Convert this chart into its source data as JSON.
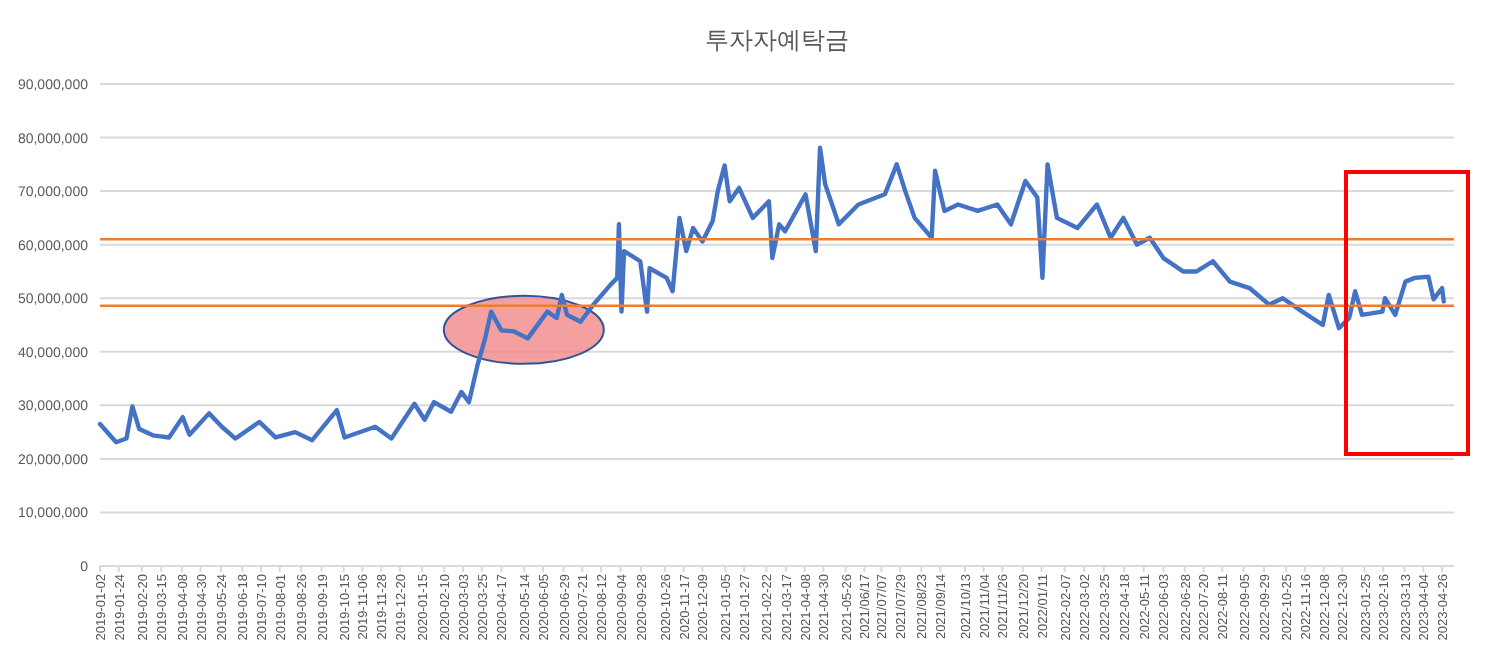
{
  "chart_data": {
    "type": "line",
    "title": "투자자예탁금",
    "x": [
      "2019-01-02",
      "2019-01-21",
      "2019-02-02",
      "2019-02-09",
      "2019-02-17",
      "2019-03-05",
      "2019-03-24",
      "2019-04-09",
      "2019-04-17",
      "2019-05-10",
      "2019-05-25",
      "2019-06-10",
      "2019-07-08",
      "2019-07-27",
      "2019-08-19",
      "2019-09-08",
      "2019-10-07",
      "2019-10-16",
      "2019-11-21",
      "2019-12-10",
      "2020-01-06",
      "2020-01-18",
      "2020-01-29",
      "2020-02-18",
      "2020-03-01",
      "2020-03-10",
      "2020-03-20",
      "2020-03-29",
      "2020-04-05",
      "2020-04-17",
      "2020-05-02",
      "2020-05-18",
      "2020-06-10",
      "2020-06-21",
      "2020-06-27",
      "2020-07-03",
      "2020-07-19",
      "2020-08-03",
      "2020-08-23",
      "2020-08-31",
      "2020-09-02",
      "2020-09-05",
      "2020-09-08",
      "2020-09-27",
      "2020-10-05",
      "2020-10-08",
      "2020-10-28",
      "2020-11-04",
      "2020-11-12",
      "2020-11-20",
      "2020-11-28",
      "2020-12-09",
      "2020-12-21",
      "2020-12-27",
      "2021-01-04",
      "2021-01-10",
      "2021-01-21",
      "2021-02-06",
      "2021-02-25",
      "2021-03-01",
      "2021-03-09",
      "2021-03-16",
      "2021-04-09",
      "2021-04-21",
      "2021-04-26",
      "2021-05-02",
      "2021-05-18",
      "2021-06-10",
      "2021-07-11",
      "2021-07-25",
      "2021-08-04",
      "2021-08-15",
      "2021-09-04",
      "2021-09-08",
      "2021-09-19",
      "2021-10-05",
      "2021-10-28",
      "2021-11-20",
      "2021-12-06",
      "2021-12-23",
      "2022-01-06",
      "2022-01-12",
      "2022-01-18",
      "2022-01-29",
      "2022-02-22",
      "2022-03-17",
      "2022-04-02",
      "2022-04-17",
      "2022-05-03",
      "2022-05-18",
      "2022-06-03",
      "2022-06-26",
      "2022-07-12",
      "2022-07-31",
      "2022-08-20",
      "2022-09-12",
      "2022-10-05",
      "2022-10-21",
      "2022-11-13",
      "2022-12-07",
      "2022-12-14",
      "2022-12-26",
      "2023-01-07",
      "2023-01-14",
      "2023-01-22",
      "2023-02-15",
      "2023-02-18",
      "2023-03-02",
      "2023-03-14",
      "2023-03-25",
      "2023-04-10",
      "2023-04-16",
      "2023-04-26",
      "2023-04-28"
    ],
    "series": [
      {
        "color": "#4472c4",
        "values": [
          26500000,
          23100000,
          23800000,
          29800000,
          25600000,
          24400000,
          24000000,
          27800000,
          24500000,
          28500000,
          26000000,
          23800000,
          26900000,
          24000000,
          25000000,
          23500000,
          29100000,
          24000000,
          26000000,
          23800000,
          30300000,
          27300000,
          30600000,
          28800000,
          32500000,
          30600000,
          37500000,
          42500000,
          47500000,
          44000000,
          43800000,
          42500000,
          47500000,
          46300000,
          50600000,
          46900000,
          45600000,
          48800000,
          52500000,
          53800000,
          63800000,
          47500000,
          58800000,
          56900000,
          47500000,
          55600000,
          53800000,
          51300000,
          65000000,
          58800000,
          63100000,
          60600000,
          64400000,
          70000000,
          74800000,
          68100000,
          70600000,
          65000000,
          68100000,
          57500000,
          63800000,
          62500000,
          69400000,
          58800000,
          78100000,
          71300000,
          63800000,
          67500000,
          69400000,
          75000000,
          70000000,
          65000000,
          61300000,
          73800000,
          66300000,
          67500000,
          66300000,
          67500000,
          63800000,
          71900000,
          68800000,
          53800000,
          75000000,
          65000000,
          63100000,
          67500000,
          61300000,
          65000000,
          60000000,
          61300000,
          57500000,
          55000000,
          55000000,
          56900000,
          53100000,
          51900000,
          48800000,
          50000000,
          47500000,
          45000000,
          50600000,
          44400000,
          46300000,
          51300000,
          46900000,
          47500000,
          50000000,
          46900000,
          53100000,
          53800000,
          54000000,
          49800000,
          51900000,
          49400000
        ]
      }
    ],
    "xlim": [
      "2019-01-02",
      "2023-05-10"
    ],
    "xticks": [
      "2019-01-02",
      "2019-01-24",
      "2019-02-20",
      "2019-03-15",
      "2019-04-08",
      "2019-04-30",
      "2019-05-24",
      "2019-06-18",
      "2019-07-10",
      "2019-08-01",
      "2019-08-26",
      "2019-09-19",
      "2019-10-15",
      "2019-11-06",
      "2019-11-28",
      "2019-12-20",
      "2020-01-15",
      "2020-02-10",
      "2020-03-03",
      "2020-03-25",
      "2020-04-17",
      "2020-05-14",
      "2020-06-05",
      "2020-06-29",
      "2020-07-21",
      "2020-08-12",
      "2020-09-04",
      "2020-09-28",
      "2020-10-26",
      "2020-11-17",
      "2020-12-09",
      "2021-01-05",
      "2021-01-27",
      "2021-02-22",
      "2021-03-17",
      "2021-04-08",
      "2021-04-30",
      "2021-05-26",
      {
        "value": "2021-06-17",
        "label": "2021/06/17"
      },
      {
        "value": "2021-07-07",
        "label": "2021/07/07"
      },
      {
        "value": "2021-07-29",
        "label": "2021/07/29"
      },
      {
        "value": "2021-08-23",
        "label": "2021/08/23"
      },
      {
        "value": "2021-09-14",
        "label": "2021/09/14"
      },
      {
        "value": "2021-10-13",
        "label": "2021/10/13"
      },
      {
        "value": "2021-11-04",
        "label": "2021/11/04"
      },
      {
        "value": "2021-11-26",
        "label": "2021/11/26"
      },
      {
        "value": "2021-12-20",
        "label": "2021/12/20"
      },
      {
        "value": "2022-01-11",
        "label": "2022/01/11"
      },
      "2022-02-07",
      "2022-03-02",
      "2022-03-25",
      "2022-04-18",
      "2022-05-11",
      "2022-06-03",
      "2022-06-28",
      "2022-07-20",
      "2022-08-11",
      "2022-09-05",
      "2022-09-29",
      "2022-10-25",
      "2022-11-16",
      "2022-12-08",
      "2022-12-30",
      "2023-01-25",
      "2023-02-16",
      "2023-03-13",
      "2023-04-04",
      "2023-04-26"
    ],
    "ylim": [
      0,
      90000000
    ],
    "yticks": [
      0,
      {
        "value": 10000000,
        "label": "10,000,000"
      },
      {
        "value": 20000000,
        "label": "20,000,000"
      },
      {
        "value": 30000000,
        "label": "30,000,000"
      },
      {
        "value": 40000000,
        "label": "40,000,000"
      },
      {
        "value": 50000000,
        "label": "50,000,000"
      },
      {
        "value": 60000000,
        "label": "60,000,000"
      },
      {
        "value": 70000000,
        "label": "70,000,000"
      },
      {
        "value": 80000000,
        "label": "80,000,000"
      },
      {
        "value": 90000000,
        "label": "90,000,000"
      }
    ],
    "grid": "y",
    "marker": "none",
    "line_style": "solid",
    "ref_lines": [
      {
        "axis": "y",
        "value": 61000000,
        "color": "#ed7d31"
      },
      {
        "axis": "y",
        "value": 48600000,
        "color": "#ed7d31"
      }
    ]
  }
}
